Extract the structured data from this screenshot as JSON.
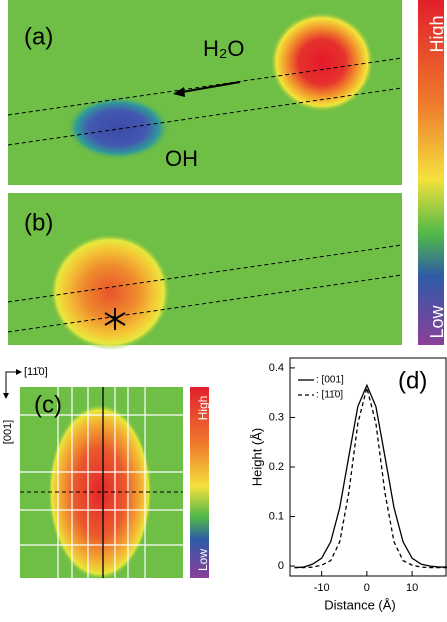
{
  "panels": {
    "a": {
      "label": "(a)",
      "molecule": "H₂O",
      "product": "OH"
    },
    "b": {
      "label": "(b)"
    },
    "scale": {
      "high": "High",
      "low": "Low"
    },
    "c": {
      "label": "(c)",
      "axis_x": "[11̄0]",
      "axis_y": "[001]",
      "high": "High",
      "low": "Low"
    }
  },
  "chart_data": {
    "type": "line",
    "title": "(d)",
    "xlabel": "Distance (Å)",
    "ylabel": "Height (Å)",
    "x": [
      -16,
      -14,
      -12,
      -10,
      -8,
      -6,
      -4,
      -2,
      0,
      2,
      4,
      6,
      8,
      10,
      12,
      14,
      16,
      18
    ],
    "series": [
      {
        "name": ": [001]",
        "color": "#000000",
        "dash": false,
        "values": [
          -0.003,
          -0.002,
          0.004,
          0.016,
          0.049,
          0.118,
          0.221,
          0.322,
          0.365,
          0.322,
          0.221,
          0.118,
          0.049,
          0.016,
          0.004,
          0.0,
          -0.002,
          -0.002
        ]
      },
      {
        "name": ": [11̄0]",
        "color": "#000000",
        "dash": true,
        "values": [
          -0.003,
          -0.003,
          -0.002,
          0.002,
          0.011,
          0.049,
          0.148,
          0.288,
          0.36,
          0.288,
          0.148,
          0.049,
          0.011,
          0.002,
          -0.002,
          -0.003,
          -0.003,
          -0.003
        ]
      }
    ],
    "xlim": [
      -17,
      17.5
    ],
    "ylim": [
      -0.02,
      0.42
    ],
    "xticks": [
      -10,
      0,
      10
    ],
    "yticks": [
      0,
      0.1,
      0.2,
      0.3,
      0.4
    ]
  }
}
